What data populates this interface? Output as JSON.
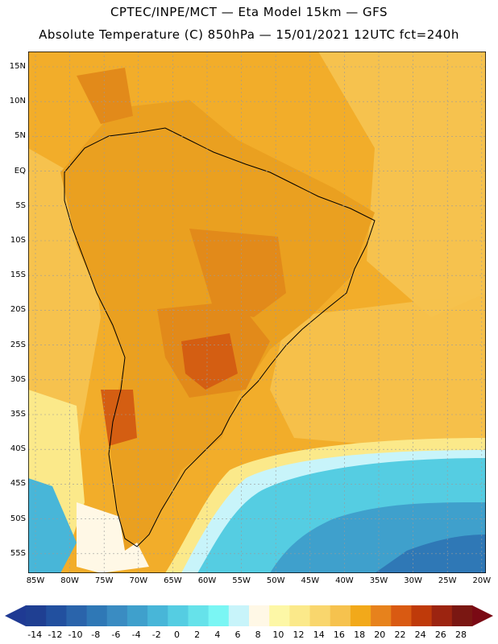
{
  "titles": {
    "line1": "CPTEC/INPE/MCT —  Eta Model 15km — GFS",
    "line2": "Absolute Temperature (C) 850hPa — 15/01/2021 12UTC fct=240h"
  },
  "axes": {
    "lat_labels": [
      "15N",
      "10N",
      "5N",
      "EQ",
      "5S",
      "10S",
      "15S",
      "20S",
      "25S",
      "30S",
      "35S",
      "40S",
      "45S",
      "50S",
      "55S"
    ],
    "lon_labels": [
      "85W",
      "80W",
      "75W",
      "70W",
      "65W",
      "60W",
      "55W",
      "50W",
      "45W",
      "40W",
      "35W",
      "30W",
      "25W",
      "20W"
    ]
  },
  "colorbar": {
    "labels": [
      "-14",
      "-12",
      "-10",
      "-8",
      "-6",
      "-4",
      "-2",
      "0",
      "2",
      "4",
      "6",
      "8",
      "10",
      "12",
      "14",
      "16",
      "18",
      "20",
      "22",
      "24",
      "26",
      "28"
    ],
    "under_color": "#1f3a93",
    "over_color": "#7a0a14",
    "colors": [
      "#1f3f92",
      "#22509f",
      "#2a64ab",
      "#2f78b6",
      "#3a8cc2",
      "#3fa0cc",
      "#48b6d8",
      "#55cde2",
      "#66e2ea",
      "#7af6f4",
      "#c8f4fa",
      "#fff8e6",
      "#fdf7a6",
      "#fbe98a",
      "#f9d66d",
      "#f6c24e",
      "#f2a91a",
      "#e7821c",
      "#d95a12",
      "#bf3a0a",
      "#9c2410",
      "#7a1712"
    ]
  },
  "map": {
    "ocean_color": "#f0a61a",
    "land_color": "#eaa020",
    "cold_ocean_color": "#5ad6e6",
    "deep_cold_color": "#3aa0cc",
    "pale_color": "#fff3e0",
    "hot_color": "#d45e12"
  }
}
